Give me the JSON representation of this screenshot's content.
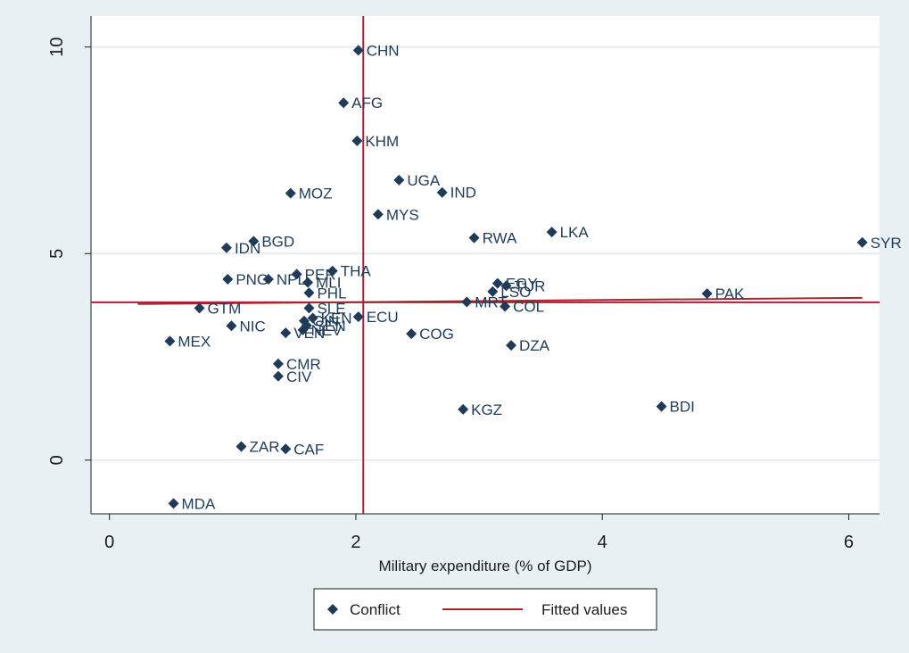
{
  "chart_data": {
    "type": "scatter",
    "title": "",
    "xlabel": "Military expenditure (% of GDP)",
    "ylabel": "",
    "xlim": [
      -0.15,
      6.25
    ],
    "ylim": [
      -1.3,
      10.75
    ],
    "xticks": [
      0,
      2,
      4,
      6
    ],
    "yticks": [
      0,
      5,
      10
    ],
    "grid": "horizontal",
    "legend_position": "bottom",
    "colors": {
      "marker": "#1f3b57",
      "fit_line": "#9e2a2b",
      "ref_line": "#b01c3a",
      "background": "#e9f0f4",
      "plot_bg": "#ffffff"
    },
    "series": [
      {
        "name": "Conflict",
        "marker": "diamond",
        "points": [
          {
            "label": "CHN",
            "x": 2.02,
            "y": 9.92
          },
          {
            "label": "AFG",
            "x": 1.9,
            "y": 8.65
          },
          {
            "label": "KHM",
            "x": 2.01,
            "y": 7.73
          },
          {
            "label": "UGA",
            "x": 2.35,
            "y": 6.78
          },
          {
            "label": "IND",
            "x": 2.7,
            "y": 6.48
          },
          {
            "label": "MOZ",
            "x": 1.47,
            "y": 6.46
          },
          {
            "label": "MYS",
            "x": 2.18,
            "y": 5.95
          },
          {
            "label": "LKA",
            "x": 3.59,
            "y": 5.52
          },
          {
            "label": "RWA",
            "x": 2.96,
            "y": 5.38
          },
          {
            "label": "SYR",
            "x": 6.11,
            "y": 5.27
          },
          {
            "label": "BGD",
            "x": 1.17,
            "y": 5.3
          },
          {
            "label": "IDN",
            "x": 0.95,
            "y": 5.14
          },
          {
            "label": "PER",
            "x": 1.52,
            "y": 4.5
          },
          {
            "label": "THA",
            "x": 1.81,
            "y": 4.58
          },
          {
            "label": "PNG",
            "x": 0.96,
            "y": 4.38
          },
          {
            "label": "NPL",
            "x": 1.29,
            "y": 4.38
          },
          {
            "label": "MLI",
            "x": 1.61,
            "y": 4.3
          },
          {
            "label": "EGY",
            "x": 3.15,
            "y": 4.28
          },
          {
            "label": "TUR",
            "x": 3.22,
            "y": 4.22
          },
          {
            "label": "LSO",
            "x": 3.11,
            "y": 4.08
          },
          {
            "label": "PAK",
            "x": 4.85,
            "y": 4.03
          },
          {
            "label": "PHL",
            "x": 1.62,
            "y": 4.05
          },
          {
            "label": "MRT",
            "x": 2.9,
            "y": 3.83
          },
          {
            "label": "COL",
            "x": 3.21,
            "y": 3.72
          },
          {
            "label": "GTM",
            "x": 0.73,
            "y": 3.68
          },
          {
            "label": "SLE",
            "x": 1.62,
            "y": 3.68
          },
          {
            "label": "ECU",
            "x": 2.02,
            "y": 3.47
          },
          {
            "label": "KEN",
            "x": 1.65,
            "y": 3.44
          },
          {
            "label": "GIN",
            "x": 1.58,
            "y": 3.37
          },
          {
            "label": "SEN",
            "x": 1.6,
            "y": 3.26
          },
          {
            "label": "NIC",
            "x": 0.99,
            "y": 3.25
          },
          {
            "label": "NEV",
            "x": 1.57,
            "y": 3.15
          },
          {
            "label": "VEN",
            "x": 1.43,
            "y": 3.08
          },
          {
            "label": "COG",
            "x": 2.45,
            "y": 3.06
          },
          {
            "label": "MEX",
            "x": 0.49,
            "y": 2.88
          },
          {
            "label": "DZA",
            "x": 3.26,
            "y": 2.78
          },
          {
            "label": "CMR",
            "x": 1.37,
            "y": 2.33
          },
          {
            "label": "CIV",
            "x": 1.37,
            "y": 2.03
          },
          {
            "label": "BDI",
            "x": 4.48,
            "y": 1.3
          },
          {
            "label": "KGZ",
            "x": 2.87,
            "y": 1.23
          },
          {
            "label": "ZAR",
            "x": 1.07,
            "y": 0.33
          },
          {
            "label": "CAF",
            "x": 1.43,
            "y": 0.27
          },
          {
            "label": "MDA",
            "x": 0.52,
            "y": -1.05
          }
        ]
      },
      {
        "name": "Fitted values",
        "type": "line",
        "points": [
          {
            "x": 0.23,
            "y": 3.78
          },
          {
            "x": 6.11,
            "y": 3.93
          }
        ]
      }
    ],
    "reference_lines": {
      "vertical_x": 2.06,
      "horizontal_y": 3.82
    }
  }
}
